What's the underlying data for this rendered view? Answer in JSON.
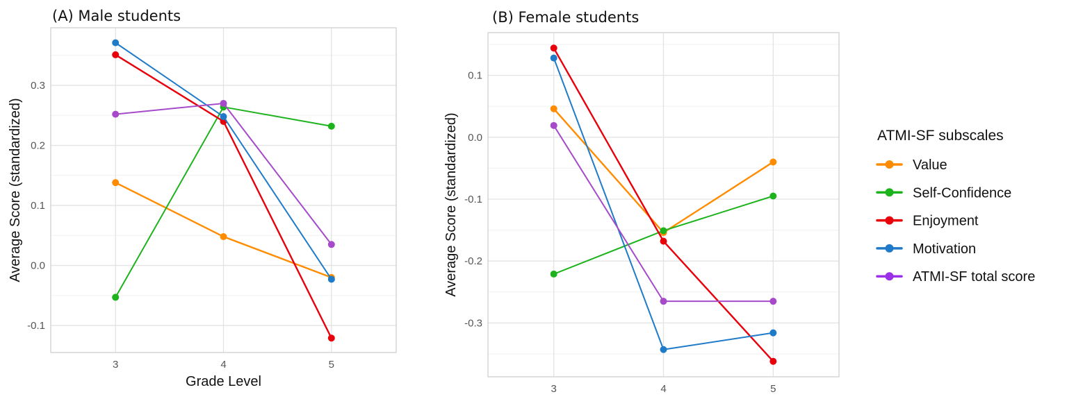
{
  "chart_data": [
    {
      "type": "line",
      "title": "(A) Male students",
      "xlabel": "Grade Level",
      "ylabel": "Average Score (standardized)",
      "x": [
        3,
        4,
        5
      ],
      "xticks": [
        "3",
        "4",
        "5"
      ],
      "xlim": [
        2.4,
        5.6
      ],
      "ylim": [
        -0.145,
        0.396
      ],
      "yticks": [
        -0.1,
        0.0,
        0.1,
        0.2,
        0.3
      ],
      "ytick_labels": [
        "-0.1",
        "0.0",
        "0.1",
        "0.2",
        "0.3"
      ],
      "grid": true,
      "series": [
        {
          "name": "Value",
          "values": [
            0.138,
            0.048,
            -0.02
          ]
        },
        {
          "name": "Self-Confidence",
          "values": [
            -0.053,
            0.264,
            0.232
          ]
        },
        {
          "name": "Enjoyment",
          "values": [
            0.351,
            0.24,
            -0.121
          ]
        },
        {
          "name": "Motivation",
          "values": [
            0.371,
            0.248,
            -0.023
          ]
        },
        {
          "name": "ATMI-SF total score",
          "values": [
            0.252,
            0.27,
            0.035
          ]
        }
      ]
    },
    {
      "type": "line",
      "title": "(B) Female students",
      "xlabel": "Grade Level",
      "ylabel": "Average Score (standardized)",
      "x": [
        3,
        4,
        5
      ],
      "xticks": [
        "3",
        "4",
        "5"
      ],
      "xlim": [
        2.4,
        5.6
      ],
      "ylim": [
        -0.387,
        0.169
      ],
      "yticks": [
        -0.3,
        -0.2,
        -0.1,
        0.0,
        0.1
      ],
      "ytick_labels": [
        "-0.3",
        "-0.2",
        "-0.1",
        "0.0",
        "0.1"
      ],
      "grid": true,
      "series": [
        {
          "name": "Value",
          "values": [
            0.046,
            -0.154,
            -0.04
          ]
        },
        {
          "name": "Self-Confidence",
          "values": [
            -0.221,
            -0.151,
            -0.095
          ]
        },
        {
          "name": "Enjoyment",
          "values": [
            0.144,
            -0.168,
            -0.362
          ]
        },
        {
          "name": "Motivation",
          "values": [
            0.128,
            -0.343,
            -0.316
          ]
        },
        {
          "name": "ATMI-SF total score",
          "values": [
            0.019,
            -0.265,
            -0.265
          ]
        }
      ]
    }
  ],
  "legend": {
    "title": "ATMI-SF subscales",
    "placement": "right",
    "items": [
      "Value",
      "Self-Confidence",
      "Enjoyment",
      "Motivation",
      "ATMI-SF total score"
    ]
  },
  "colors": {
    "Value": "#FF8C00",
    "Self-Confidence": "#1DB31D",
    "Enjoyment": "#E8000B",
    "Motivation": "#1F7BC8",
    "ATMI-SF total score": "#A64AC9",
    "legend_total": "#9B30E8"
  }
}
